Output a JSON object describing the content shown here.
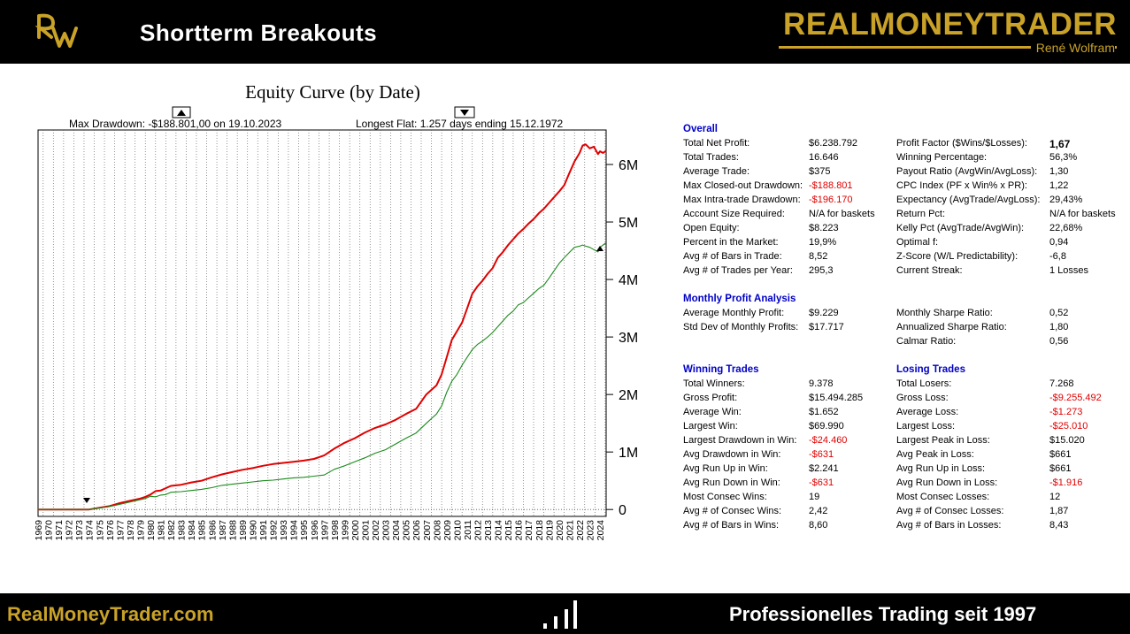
{
  "header": {
    "title": "Shortterm  Breakouts",
    "brand": "REALMONEYTRADER",
    "brand_sub": "René Wolfram",
    "logo_icon": "rw-monogram-logo",
    "brand_color": "#c9a227"
  },
  "footer": {
    "url": "RealMoneyTrader.com",
    "tagline": "Professionelles  Trading seit 1997",
    "icon": "bar-chart-icon"
  },
  "chart_data": {
    "type": "line",
    "title": "Equity Curve (by Date)",
    "annotations": {
      "max_drawdown": "Max Drawdown: -$188.801,00 on 19.10.2023",
      "longest_flat": "Longest Flat: 1.257 days ending 15.12.1972"
    },
    "x_tick_labels": [
      "1969",
      "1970",
      "1971",
      "1972",
      "1973",
      "1974",
      "1975",
      "1976",
      "1977",
      "1978",
      "1979",
      "1980",
      "1981",
      "1982",
      "1983",
      "1984",
      "1985",
      "1986",
      "1987",
      "1988",
      "1989",
      "1990",
      "1991",
      "1992",
      "1993",
      "1994",
      "1995",
      "1996",
      "1997",
      "1998",
      "1999",
      "2000",
      "2001",
      "2002",
      "2003",
      "2004",
      "2005",
      "2006",
      "2007",
      "2008",
      "2009",
      "2010",
      "2011",
      "2012",
      "2013",
      "2014",
      "2015",
      "2016",
      "2017",
      "2018",
      "2019",
      "2020",
      "2021",
      "2022",
      "2023",
      "2024"
    ],
    "y_ticks": [
      0,
      1000000,
      2000000,
      3000000,
      4000000,
      5000000,
      6000000
    ],
    "y_tick_labels": [
      "0",
      "1M",
      "2M",
      "3M",
      "4M",
      "5M",
      "6M"
    ],
    "xlim": [
      1969,
      2024.6
    ],
    "ylim": [
      -120000,
      6600000
    ],
    "grid": "vertical-dotted",
    "colors": {
      "series_red": "#e00000",
      "series_green": "#1a8a1a"
    },
    "series": [
      {
        "color": "#e00000",
        "x": [
          1969,
          1970,
          1971,
          1972,
          1973,
          1974,
          1975,
          1976,
          1977,
          1978,
          1979,
          1979.5,
          1980,
          1980.5,
          1981,
          1981.5,
          1982,
          1983,
          1984,
          1985,
          1986,
          1987,
          1988,
          1989,
          1990,
          1991,
          1992,
          1993,
          1994,
          1995,
          1996,
          1997,
          1998,
          1999,
          2000,
          2001,
          2002,
          2003,
          2004,
          2005,
          2006,
          2007,
          2007.5,
          2008,
          2008.5,
          2009,
          2009.5,
          2010,
          2010.5,
          2011,
          2011.5,
          2012,
          2012.5,
          2013,
          2013.5,
          2014,
          2014.5,
          2015,
          2015.5,
          2016,
          2016.5,
          2017,
          2017.5,
          2018,
          2018.5,
          2019,
          2019.5,
          2020,
          2020.5,
          2021,
          2021.5,
          2022,
          2022.3,
          2022.6,
          2023,
          2023.4,
          2023.8,
          2024,
          2024.3,
          2024.6
        ],
        "values": [
          0,
          0,
          0,
          0,
          0,
          0,
          30000,
          60000,
          110000,
          150000,
          190000,
          220000,
          260000,
          320000,
          330000,
          370000,
          410000,
          430000,
          470000,
          500000,
          560000,
          610000,
          650000,
          690000,
          720000,
          760000,
          790000,
          810000,
          830000,
          850000,
          880000,
          940000,
          1060000,
          1160000,
          1240000,
          1340000,
          1420000,
          1480000,
          1560000,
          1660000,
          1750000,
          2000000,
          2080000,
          2160000,
          2350000,
          2650000,
          2950000,
          3100000,
          3250000,
          3500000,
          3750000,
          3880000,
          3980000,
          4100000,
          4200000,
          4380000,
          4480000,
          4600000,
          4700000,
          4800000,
          4880000,
          4970000,
          5050000,
          5150000,
          5230000,
          5330000,
          5430000,
          5530000,
          5640000,
          5850000,
          6050000,
          6200000,
          6330000,
          6350000,
          6280000,
          6310000,
          6180000,
          6230000,
          6200000,
          6240000
        ]
      },
      {
        "color": "#1a8a1a",
        "x": [
          1969,
          1970,
          1971,
          1972,
          1973,
          1974,
          1975,
          1976,
          1977,
          1978,
          1979,
          1979.5,
          1980,
          1980.5,
          1981,
          1981.5,
          1982,
          1983,
          1984,
          1985,
          1986,
          1987,
          1988,
          1989,
          1990,
          1991,
          1992,
          1993,
          1994,
          1995,
          1996,
          1997,
          1998,
          1999,
          2000,
          2001,
          2002,
          2003,
          2004,
          2005,
          2006,
          2007,
          2007.5,
          2008,
          2008.5,
          2009,
          2009.5,
          2010,
          2010.5,
          2011,
          2011.5,
          2012,
          2012.5,
          2013,
          2013.5,
          2014,
          2014.5,
          2015,
          2015.5,
          2016,
          2016.5,
          2017,
          2017.5,
          2018,
          2018.5,
          2019,
          2019.5,
          2020,
          2020.5,
          2021,
          2021.5,
          2022,
          2022.3,
          2022.6,
          2023,
          2023.4,
          2023.8,
          2024,
          2024.3,
          2024.6
        ],
        "values": [
          0,
          0,
          0,
          0,
          0,
          0,
          25000,
          50000,
          90000,
          130000,
          170000,
          190000,
          230000,
          220000,
          250000,
          260000,
          300000,
          310000,
          330000,
          350000,
          380000,
          420000,
          440000,
          460000,
          480000,
          500000,
          510000,
          530000,
          550000,
          560000,
          580000,
          600000,
          700000,
          760000,
          830000,
          900000,
          980000,
          1040000,
          1140000,
          1240000,
          1330000,
          1500000,
          1580000,
          1660000,
          1800000,
          2040000,
          2230000,
          2350000,
          2510000,
          2650000,
          2780000,
          2870000,
          2930000,
          3000000,
          3080000,
          3180000,
          3280000,
          3380000,
          3450000,
          3560000,
          3600000,
          3680000,
          3760000,
          3840000,
          3900000,
          4020000,
          4150000,
          4280000,
          4380000,
          4470000,
          4560000,
          4580000,
          4600000,
          4580000,
          4560000,
          4520000,
          4480000,
          4560000,
          4600000,
          4640000
        ]
      }
    ]
  },
  "stats": {
    "overall": {
      "heading": "Overall",
      "left": [
        {
          "label": "Total Net Profit:",
          "value": "$6.238.792"
        },
        {
          "label": "Total Trades:",
          "value": "16.646"
        },
        {
          "label": "Average Trade:",
          "value": "$375"
        },
        {
          "label": "Max Closed-out Drawdown:",
          "value": "-$188.801"
        },
        {
          "label": "Max Intra-trade Drawdown:",
          "value": "-$196.170"
        },
        {
          "label": "Account Size Required:",
          "value": "N/A for baskets"
        },
        {
          "label": "Open Equity:",
          "value": "$8.223"
        },
        {
          "label": "Percent in the Market:",
          "value": "19,9%"
        },
        {
          "label": "Avg # of Bars in Trade:",
          "value": "8,52"
        },
        {
          "label": "Avg # of Trades per Year:",
          "value": "295,3"
        }
      ],
      "right": [
        {
          "label": "Profit Factor ($Wins/$Losses):",
          "value": "1,67"
        },
        {
          "label": "Winning Percentage:",
          "value": "56,3%"
        },
        {
          "label": "Payout Ratio (AvgWin/AvgLoss):",
          "value": "1,30"
        },
        {
          "label": "CPC Index (PF x Win% x PR):",
          "value": "1,22"
        },
        {
          "label": "Expectancy (AvgTrade/AvgLoss):",
          "value": "29,43%"
        },
        {
          "label": "Return Pct:",
          "value": "N/A for baskets"
        },
        {
          "label": "Kelly Pct (AvgTrade/AvgWin):",
          "value": "22,68%"
        },
        {
          "label": "Optimal f:",
          "value": "0,94"
        },
        {
          "label": "Z-Score (W/L Predictability):",
          "value": "-6,8"
        },
        {
          "label": "Current Streak:",
          "value": "1 Losses"
        }
      ]
    },
    "monthly": {
      "heading": "Monthly Profit Analysis",
      "left": [
        {
          "label": "Average Monthly Profit:",
          "value": "$9.229"
        },
        {
          "label": "Std Dev of Monthly Profits:",
          "value": "$17.717"
        }
      ],
      "right": [
        {
          "label": "Monthly Sharpe Ratio:",
          "value": "0,52"
        },
        {
          "label": "Annualized Sharpe Ratio:",
          "value": "1,80"
        },
        {
          "label": "Calmar Ratio:",
          "value": "0,56"
        }
      ]
    },
    "winning": {
      "heading": "Winning Trades",
      "rows": [
        {
          "label": "Total Winners:",
          "value": "9.378"
        },
        {
          "label": "Gross Profit:",
          "value": "$15.494.285"
        },
        {
          "label": "Average Win:",
          "value": "$1.652"
        },
        {
          "label": "Largest Win:",
          "value": "$69.990"
        },
        {
          "label": "Largest Drawdown in Win:",
          "value": "-$24.460"
        },
        {
          "label": "Avg Drawdown in Win:",
          "value": "-$631"
        },
        {
          "label": "Avg Run Up in Win:",
          "value": "$2.241"
        },
        {
          "label": "Avg Run Down in Win:",
          "value": "-$631"
        },
        {
          "label": "Most Consec Wins:",
          "value": "19"
        },
        {
          "label": "Avg # of Consec Wins:",
          "value": "2,42"
        },
        {
          "label": "Avg # of Bars in Wins:",
          "value": "8,60"
        }
      ]
    },
    "losing": {
      "heading": "Losing Trades",
      "rows": [
        {
          "label": "Total Losers:",
          "value": "7.268"
        },
        {
          "label": "Gross Loss:",
          "value": "-$9.255.492"
        },
        {
          "label": "Average Loss:",
          "value": "-$1.273"
        },
        {
          "label": "Largest Loss:",
          "value": "-$25.010"
        },
        {
          "label": "Largest Peak in Loss:",
          "value": "$15.020"
        },
        {
          "label": "Avg Peak in Loss:",
          "value": "$661"
        },
        {
          "label": "Avg Run Up in Loss:",
          "value": "$661"
        },
        {
          "label": "Avg Run Down in Loss:",
          "value": "-$1.916"
        },
        {
          "label": "Most Consec Losses:",
          "value": "12"
        },
        {
          "label": "Avg # of Consec Losses:",
          "value": "1,87"
        },
        {
          "label": "Avg # of Bars in Losses:",
          "value": "8,43"
        }
      ]
    }
  }
}
